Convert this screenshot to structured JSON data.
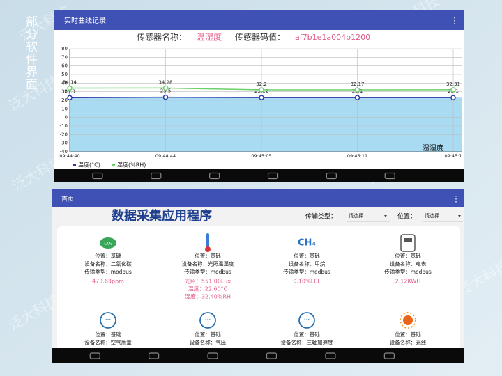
{
  "side_title": "部分软件界面",
  "watermark": "泛大科技",
  "top_screen": {
    "app_bar_title": "实时曲线记录",
    "sensor_name_label": "传感器名称：",
    "sensor_name": "温湿度",
    "sensor_code_label": "传感器码值：",
    "sensor_code": "af7b1e1a004b1200",
    "chart": {
      "type": "line",
      "x": [
        "09:44:40",
        "09:44:44",
        "09:45:05",
        "09:45:11",
        "09:45:1"
      ],
      "ylim": [
        -40,
        80
      ],
      "yticks": [
        -40,
        -30,
        -20,
        -10,
        0,
        10,
        20,
        30,
        40,
        50,
        60,
        70,
        80
      ],
      "grid": true,
      "area_color": "#a9dcf3",
      "corner_label": "温湿度",
      "series": [
        {
          "name": "温度(°C)",
          "color": "#2e3aa8",
          "values": [
            23.0,
            23.5,
            23.12,
            23.1,
            23.1
          ],
          "value_labels": [
            "23.0",
            "23.5",
            "23.12",
            "23.1",
            "23.1"
          ]
        },
        {
          "name": "湿度(%RH)",
          "color": "#6bd16b",
          "values": [
            34.14,
            34.28,
            32.2,
            32.17,
            32.31
          ]
        }
      ]
    }
  },
  "bottom_screen": {
    "app_bar_title": "首页",
    "app_title": "数据采集应用程序",
    "filter_type_label": "传输类型：",
    "filter_type_value": "请选择",
    "filter_location_label": "位置：",
    "filter_location_value": "请选择",
    "cards": [
      {
        "icon_text": "CO₂",
        "lines": [
          "位置：基础",
          "设备名称：二氧化碳",
          "传输类型：modbus"
        ],
        "readings": [
          "473.63ppm"
        ]
      },
      {
        "lines": [
          "位置：基础",
          "设备名称：光照温湿度",
          "传输类型：modbus"
        ],
        "readings": [
          "光照：551.00Lux",
          "温度：22.60°C",
          "湿度：32.40%RH"
        ]
      },
      {
        "icon_text": "CH₄",
        "lines": [
          "位置：基础",
          "设备名称：甲烷",
          "传输类型：modbus"
        ],
        "readings": [
          "0.10%LEL"
        ]
      },
      {
        "lines": [
          "位置：基础",
          "设备名称：电表",
          "传输类型：modbus"
        ],
        "readings": [
          "2.12KWH"
        ]
      },
      {
        "lines": [
          "位置：基础",
          "设备名称：空气质量"
        ]
      },
      {
        "lines": [
          "位置：基础",
          "设备名称：气压"
        ]
      },
      {
        "lines": [
          "位置：基础",
          "设备名称：三轴加速度"
        ]
      },
      {
        "lines": [
          "位置：基础",
          "设备名称：光线"
        ]
      }
    ]
  }
}
